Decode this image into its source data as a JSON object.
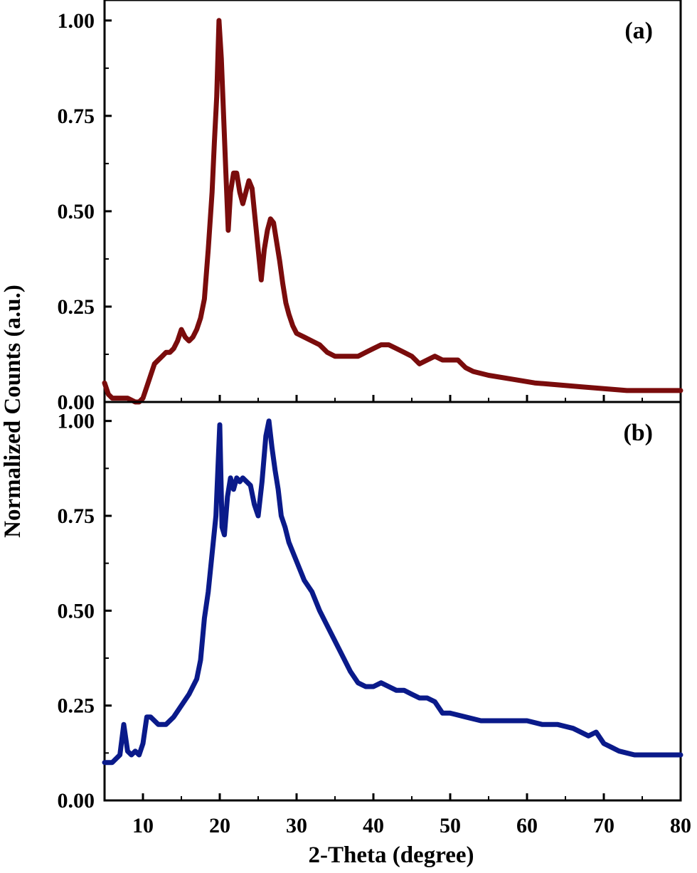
{
  "chart_data": {
    "type": "line",
    "title": "",
    "xlabel": "2-Theta (degree)",
    "ylabel": "Normalized Counts (a.u.)",
    "xlim": [
      5,
      80
    ],
    "x_ticks": [
      10,
      20,
      30,
      40,
      50,
      60,
      70,
      80
    ],
    "grid": false,
    "legend": "none",
    "panels": [
      {
        "label": "(a)",
        "color": "#7a0c0c",
        "ylim": [
          0,
          1.05
        ],
        "y_ticks": [
          "0.00",
          "0.25",
          "0.50",
          "0.75",
          "1.00"
        ],
        "x": [
          5,
          5.5,
          6,
          7,
          8,
          9,
          9.5,
          10,
          10.5,
          11,
          11.5,
          12,
          12.5,
          13,
          13.5,
          14,
          14.5,
          15,
          15.5,
          16,
          16.5,
          17,
          17.5,
          18,
          18.5,
          19,
          19.3,
          19.6,
          19.9,
          20.2,
          20.5,
          20.8,
          21.1,
          21.4,
          21.8,
          22.2,
          22.6,
          23,
          23.4,
          23.8,
          24.2,
          24.6,
          25,
          25.4,
          25.8,
          26.2,
          26.6,
          27,
          27.4,
          27.8,
          28.2,
          28.6,
          29,
          29.5,
          30,
          31,
          32,
          33,
          34,
          35,
          36,
          37,
          38,
          39,
          40,
          41,
          42,
          43,
          44,
          45,
          46,
          47,
          48,
          49,
          50,
          51,
          52,
          53,
          55,
          58,
          61,
          64,
          67,
          70,
          73,
          76,
          80
        ],
        "values": [
          0.05,
          0.02,
          0.01,
          0.01,
          0.01,
          0.0,
          0.0,
          0.01,
          0.04,
          0.07,
          0.1,
          0.11,
          0.12,
          0.13,
          0.13,
          0.14,
          0.16,
          0.19,
          0.17,
          0.16,
          0.17,
          0.19,
          0.22,
          0.27,
          0.4,
          0.55,
          0.68,
          0.8,
          1.0,
          0.9,
          0.75,
          0.6,
          0.45,
          0.55,
          0.6,
          0.6,
          0.55,
          0.52,
          0.55,
          0.58,
          0.56,
          0.48,
          0.4,
          0.32,
          0.4,
          0.45,
          0.48,
          0.47,
          0.42,
          0.37,
          0.31,
          0.26,
          0.23,
          0.2,
          0.18,
          0.17,
          0.16,
          0.15,
          0.13,
          0.12,
          0.12,
          0.12,
          0.12,
          0.13,
          0.14,
          0.15,
          0.15,
          0.14,
          0.13,
          0.12,
          0.1,
          0.11,
          0.12,
          0.11,
          0.11,
          0.11,
          0.09,
          0.08,
          0.07,
          0.06,
          0.05,
          0.045,
          0.04,
          0.035,
          0.03,
          0.03,
          0.03
        ]
      },
      {
        "label": "(b)",
        "color": "#0a1a8a",
        "ylim": [
          0,
          1.05
        ],
        "y_ticks": [
          "0.00",
          "0.25",
          "0.50",
          "0.75",
          "1.00"
        ],
        "x": [
          5,
          6,
          7,
          7.5,
          8,
          8.5,
          9,
          9.5,
          10,
          10.5,
          11,
          11.5,
          12,
          13,
          14,
          15,
          16,
          17,
          17.5,
          18,
          18.5,
          19,
          19.5,
          20,
          20.3,
          20.6,
          21,
          21.4,
          21.8,
          22.2,
          22.6,
          23,
          23.5,
          24,
          24.5,
          25,
          25.5,
          26,
          26.4,
          26.8,
          27.2,
          27.6,
          28,
          28.5,
          29,
          30,
          31,
          32,
          33,
          34,
          35,
          36,
          37,
          38,
          39,
          40,
          41,
          42,
          43,
          44,
          45,
          46,
          47,
          48,
          49,
          50,
          52,
          54,
          56,
          58,
          60,
          62,
          64,
          66,
          68,
          69,
          70,
          71,
          72,
          74,
          76,
          78,
          80
        ],
        "values": [
          0.1,
          0.1,
          0.12,
          0.2,
          0.13,
          0.12,
          0.13,
          0.12,
          0.15,
          0.22,
          0.22,
          0.21,
          0.2,
          0.2,
          0.22,
          0.25,
          0.28,
          0.32,
          0.37,
          0.48,
          0.55,
          0.65,
          0.75,
          0.99,
          0.72,
          0.7,
          0.8,
          0.85,
          0.82,
          0.85,
          0.84,
          0.85,
          0.84,
          0.83,
          0.78,
          0.75,
          0.84,
          0.96,
          1.0,
          0.93,
          0.87,
          0.82,
          0.75,
          0.72,
          0.68,
          0.63,
          0.58,
          0.55,
          0.5,
          0.46,
          0.42,
          0.38,
          0.34,
          0.31,
          0.3,
          0.3,
          0.31,
          0.3,
          0.29,
          0.29,
          0.28,
          0.27,
          0.27,
          0.26,
          0.23,
          0.23,
          0.22,
          0.21,
          0.21,
          0.21,
          0.21,
          0.2,
          0.2,
          0.19,
          0.17,
          0.18,
          0.15,
          0.14,
          0.13,
          0.12,
          0.12,
          0.12,
          0.12
        ]
      }
    ]
  }
}
